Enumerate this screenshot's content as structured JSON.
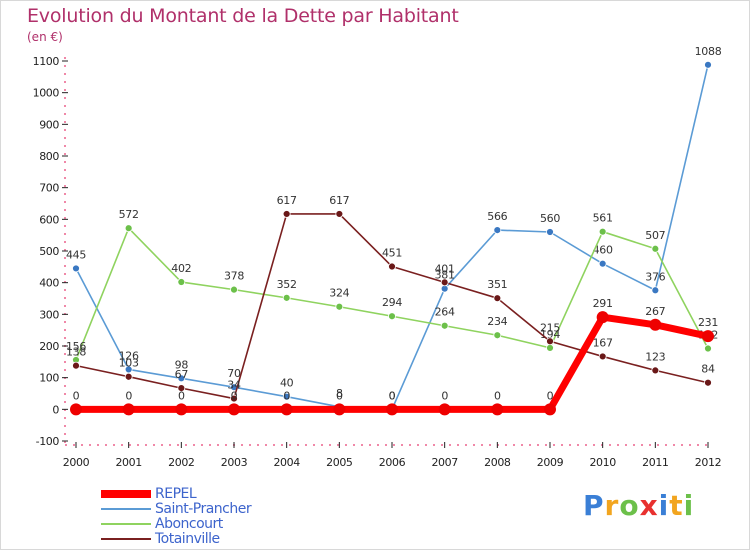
{
  "title": "Evolution du Montant de la Dette par Habitant",
  "unit": "(en €)",
  "brand": {
    "letters": [
      {
        "ch": "P",
        "color": "#3a7fd6"
      },
      {
        "ch": "r",
        "color": "#f2a51f"
      },
      {
        "ch": "o",
        "color": "#6cc04a"
      },
      {
        "ch": "x",
        "color": "#e8312f"
      },
      {
        "ch": "i",
        "color": "#3a7fd6"
      },
      {
        "ch": "t",
        "color": "#f2a51f"
      },
      {
        "ch": "i",
        "color": "#6cc04a"
      }
    ]
  },
  "chart_data": {
    "type": "line",
    "x": [
      "2000",
      "2001",
      "2002",
      "2003",
      "2004",
      "2005",
      "2006",
      "2007",
      "2008",
      "2009",
      "2010",
      "2011",
      "2012"
    ],
    "ylim": [
      -100,
      1100
    ],
    "yticks": [
      "-100",
      "0",
      "100",
      "200",
      "300",
      "400",
      "500",
      "600",
      "700",
      "800",
      "900",
      "1000",
      "1100"
    ],
    "grid": false,
    "legend": "bottom-left",
    "series": [
      {
        "name": "Saint-Prancher",
        "color": "#5b9bd5",
        "dot": "#3a78c2",
        "values": [
          445,
          126,
          98,
          70,
          40,
          8,
          0,
          381,
          566,
          560,
          460,
          376,
          1088
        ]
      },
      {
        "name": "Aboncourt",
        "color": "#8fd35f",
        "dot": "#6cc04a",
        "values": [
          156,
          572,
          402,
          378,
          352,
          324,
          294,
          264,
          234,
          194,
          561,
          507,
          192
        ]
      },
      {
        "name": "Totainville",
        "color": "#7a2020",
        "dot": "#6a1818",
        "values": [
          138,
          103,
          67,
          34,
          617,
          617,
          451,
          401,
          351,
          215,
          167,
          123,
          84
        ]
      },
      {
        "name": "REPEL",
        "color": "#ff0000",
        "dot": "#ee0000",
        "values": [
          0,
          0,
          0,
          0,
          0,
          0,
          0,
          0,
          0,
          0,
          291,
          267,
          231
        ]
      }
    ]
  }
}
